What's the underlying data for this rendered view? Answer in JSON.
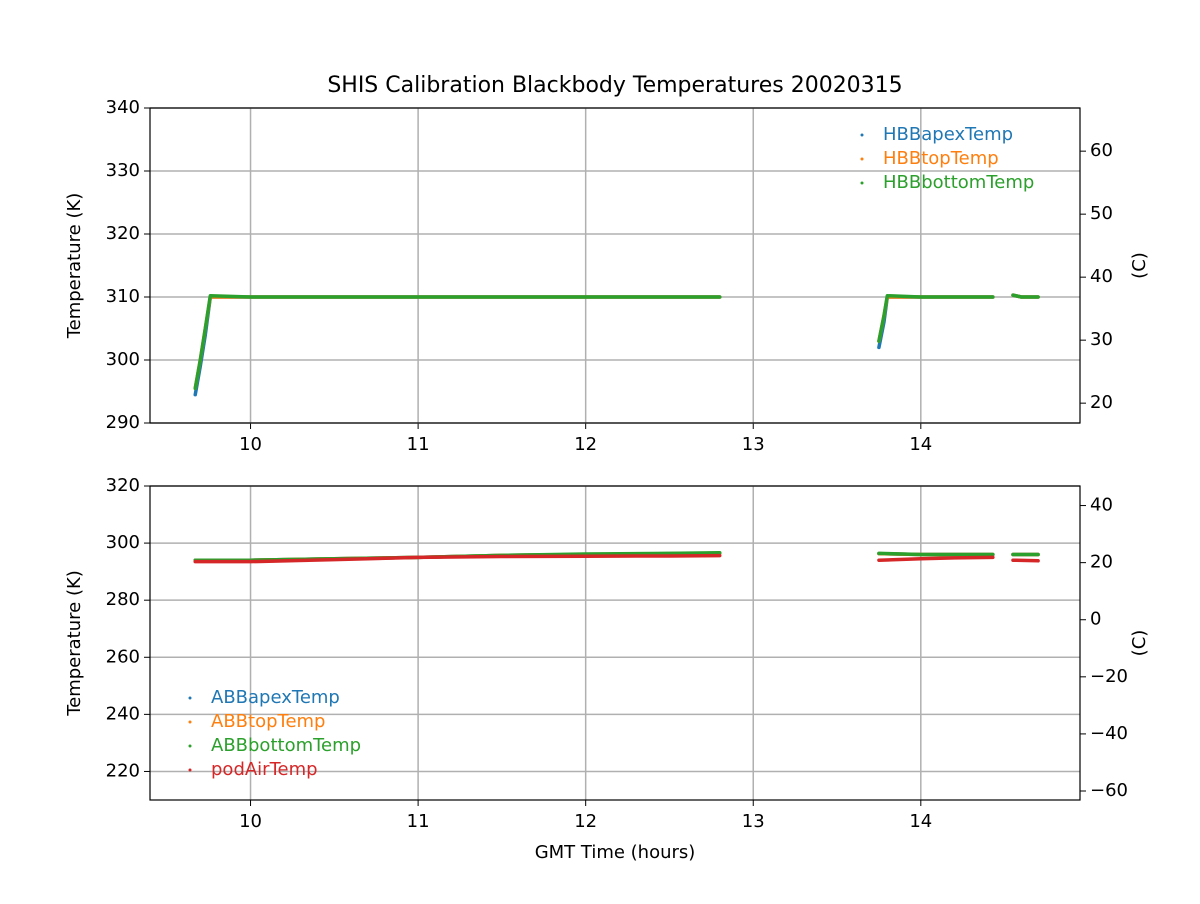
{
  "chart_data": [
    {
      "type": "line",
      "title": "SHIS Calibration Blackbody Temperatures 20020315",
      "ylabel": "Temperature (K)",
      "y2label": "(C)",
      "x": [
        9.67,
        9.7,
        9.73,
        9.76,
        10,
        10.5,
        11,
        11.5,
        12,
        12.5,
        12.8,
        13.2,
        13.75,
        13.78,
        13.8,
        14,
        14.2,
        14.43,
        14.5,
        14.55,
        14.6,
        14.7
      ],
      "series": [
        {
          "name": "HBBapexTemp",
          "color": "#1f77b4",
          "values": [
            294.5,
            299,
            304,
            310,
            310,
            310,
            310,
            310,
            310,
            310,
            310,
            null,
            302,
            306,
            310,
            310,
            310,
            310,
            null,
            310.3,
            310,
            310
          ]
        },
        {
          "name": "HBBtopTemp",
          "color": "#ff7f0e",
          "values": [
            295.5,
            300,
            305,
            310,
            310,
            310,
            310,
            310,
            310,
            310,
            310,
            null,
            303,
            307,
            310,
            310,
            310,
            310,
            null,
            310.3,
            310,
            310
          ]
        },
        {
          "name": "HBBbottomTemp",
          "color": "#2ca02c",
          "values": [
            295.5,
            300,
            305,
            310.2,
            310,
            310,
            310,
            310,
            310,
            310,
            310,
            null,
            303,
            307,
            310.2,
            310,
            310,
            310,
            null,
            310.3,
            310,
            310
          ]
        }
      ],
      "xlim": [
        9.4,
        14.95
      ],
      "xticks": [
        10,
        11,
        12,
        13,
        14
      ],
      "ylim": [
        290,
        340
      ],
      "yticks": [
        290,
        300,
        310,
        320,
        330,
        340
      ],
      "y2lim": [
        16.85,
        66.85
      ],
      "y2ticks": [
        20,
        30,
        40,
        50,
        60
      ],
      "grid": true,
      "legend": "upper right"
    },
    {
      "type": "line",
      "xlabel": "GMT Time (hours)",
      "ylabel": "Temperature (K)",
      "y2label": "(C)",
      "x": [
        9.67,
        10,
        10.5,
        11,
        11.5,
        12,
        12.5,
        12.8,
        13.2,
        13.75,
        14,
        14.2,
        14.43,
        14.5,
        14.55,
        14.7
      ],
      "series": [
        {
          "name": "ABBapexTemp",
          "color": "#1f77b4",
          "values": [
            294,
            294,
            294.5,
            295,
            295.7,
            296,
            296.3,
            296.5,
            null,
            296.3,
            296,
            296,
            296,
            null,
            296,
            296
          ]
        },
        {
          "name": "ABBtopTemp",
          "color": "#ff7f0e",
          "values": [
            294,
            294,
            294.5,
            295,
            295.7,
            296,
            296.3,
            296.5,
            null,
            296.3,
            296,
            296,
            296,
            null,
            296,
            296
          ]
        },
        {
          "name": "ABBbottomTemp",
          "color": "#2ca02c",
          "values": [
            294,
            294,
            294.5,
            295,
            295.7,
            296.2,
            296.4,
            296.6,
            null,
            296.4,
            296,
            296,
            296,
            null,
            296,
            296
          ]
        },
        {
          "name": "podAirTemp",
          "color": "#d62728",
          "values": [
            293.5,
            293.5,
            294.2,
            295,
            295.3,
            295.4,
            295.5,
            295.6,
            null,
            294,
            294.5,
            294.8,
            295,
            null,
            294,
            293.8
          ]
        }
      ],
      "xlim": [
        9.4,
        14.95
      ],
      "xticks": [
        10,
        11,
        12,
        13,
        14
      ],
      "ylim": [
        210,
        320
      ],
      "yticks": [
        220,
        240,
        260,
        280,
        300,
        320
      ],
      "y2lim": [
        -63.15,
        46.85
      ],
      "y2ticks": [
        {
          "value": -60,
          "label": "−60"
        },
        {
          "value": -40,
          "label": "−40"
        },
        {
          "value": -20,
          "label": "−20"
        },
        0,
        20,
        40
      ],
      "grid": true,
      "legend": "lower left"
    }
  ]
}
